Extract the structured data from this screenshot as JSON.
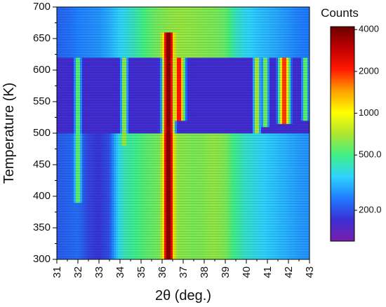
{
  "chart_data": {
    "type": "heatmap",
    "title": "",
    "xlabel": "2θ (deg.)",
    "ylabel": "Temperature (K)",
    "xlim": [
      31,
      43
    ],
    "ylim": [
      300,
      700
    ],
    "x_ticks": [
      31,
      32,
      33,
      34,
      35,
      36,
      37,
      38,
      39,
      40,
      41,
      42,
      43
    ],
    "y_ticks": [
      300,
      350,
      400,
      450,
      500,
      550,
      600,
      650,
      700
    ],
    "x_tick_labels": [
      "31",
      "32",
      "33",
      "34",
      "35",
      "36",
      "37",
      "38",
      "39",
      "40",
      "41",
      "42",
      "43"
    ],
    "y_tick_labels": [
      "300",
      "350",
      "400",
      "450",
      "500",
      "550",
      "600",
      "650",
      "700"
    ],
    "colorbar": {
      "title": "Counts",
      "scale": "log",
      "range": [
        120,
        4200
      ],
      "tick_values": [
        200,
        500,
        1000,
        2000,
        4000
      ],
      "tick_labels": [
        "200.0",
        "500.0",
        "1000",
        "2000",
        "4000"
      ],
      "colormap": [
        "#7a1fa8",
        "#3b2fd6",
        "#1f7cff",
        "#2ed3ff",
        "#41f086",
        "#aee52f",
        "#ffff00",
        "#ffa000",
        "#ff1a00",
        "#c00000",
        "#6b0000"
      ]
    },
    "phase_boundaries_K": [
      500,
      622
    ],
    "background_counts": {
      "x": [
        31.0,
        31.5,
        32.0,
        32.5,
        33.0,
        33.5,
        34.0,
        34.5,
        35.0,
        35.5,
        36.0,
        36.5,
        37.0,
        37.5,
        38.0,
        38.5,
        39.0,
        39.5,
        40.0,
        40.5,
        41.0,
        41.5,
        42.0,
        42.5,
        43.0
      ],
      "low_T_400K": [
        210,
        220,
        230,
        190,
        175,
        200,
        380,
        460,
        520,
        560,
        610,
        650,
        630,
        600,
        620,
        650,
        600,
        470,
        400,
        370,
        340,
        320,
        300,
        280,
        270
      ],
      "high_T_650K": [
        220,
        230,
        250,
        260,
        270,
        300,
        350,
        400,
        480,
        560,
        610,
        650,
        660,
        640,
        620,
        600,
        560,
        420,
        360,
        330,
        310,
        290,
        270,
        250,
        240
      ]
    },
    "peaks": [
      {
        "two_theta": 32.0,
        "T_start": 390,
        "T_end": 622,
        "peak_counts": 600
      },
      {
        "two_theta": 34.2,
        "T_start": 480,
        "T_end": 622,
        "peak_counts": 700
      },
      {
        "two_theta": 34.3,
        "T_start": 300,
        "T_end": 480,
        "peak_counts": 450
      },
      {
        "two_theta": 36.3,
        "T_start": 300,
        "T_end": 660,
        "peak_counts": 4000
      },
      {
        "two_theta": 36.8,
        "T_start": 520,
        "T_end": 622,
        "peak_counts": 2200
      },
      {
        "two_theta": 40.5,
        "T_start": 500,
        "T_end": 622,
        "peak_counts": 800
      },
      {
        "two_theta": 40.9,
        "T_start": 510,
        "T_end": 622,
        "peak_counts": 650
      },
      {
        "two_theta": 41.8,
        "T_start": 515,
        "T_end": 622,
        "peak_counts": 2000
      },
      {
        "two_theta": 42.8,
        "T_start": 520,
        "T_end": 622,
        "peak_counts": 600
      }
    ]
  }
}
